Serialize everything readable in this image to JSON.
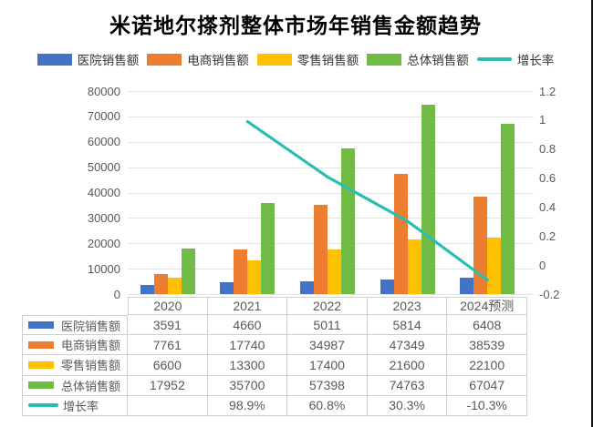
{
  "chart_data": {
    "type": "bar",
    "title": "米诺地尔搽剂整体市场年销售金额趋势",
    "categories": [
      "2020",
      "2021",
      "2022",
      "2023",
      "2024预测"
    ],
    "series": [
      {
        "key": "hospital-sales",
        "name": "医院销售额",
        "type": "bar",
        "axis": "left",
        "color": "#4472C4",
        "values": [
          3591,
          4660,
          5011,
          5814,
          6408
        ]
      },
      {
        "key": "ecommerce-sales",
        "name": "电商销售额",
        "type": "bar",
        "axis": "left",
        "color": "#ED7D31",
        "values": [
          7761,
          17740,
          34987,
          47349,
          38539
        ]
      },
      {
        "key": "retail-sales",
        "name": "零售销售额",
        "type": "bar",
        "axis": "left",
        "color": "#FFC000",
        "values": [
          6600,
          13300,
          17400,
          21600,
          22100
        ]
      },
      {
        "key": "total-sales",
        "name": "总体销售额",
        "type": "bar",
        "axis": "left",
        "color": "#71BC47",
        "values": [
          17952,
          35700,
          57398,
          74763,
          67047
        ]
      },
      {
        "key": "growth-rate",
        "name": "增长率",
        "type": "line",
        "axis": "right",
        "color": "#2CBDB2",
        "values": [
          null,
          0.989,
          0.608,
          0.303,
          -0.103
        ]
      }
    ],
    "left_axis": {
      "min": 0,
      "max": 80000,
      "tick_labels": [
        "0",
        "10000",
        "20000",
        "30000",
        "40000",
        "50000",
        "60000",
        "70000",
        "80000"
      ]
    },
    "right_axis": {
      "min": -0.2,
      "max": 1.2,
      "tick_labels": [
        "-0.2",
        "0",
        "0.2",
        "0.4",
        "0.6",
        "0.8",
        "1",
        "1.2"
      ]
    },
    "grid": true,
    "legend_position": "top"
  },
  "table": {
    "corner_label": "",
    "header": [
      "2020",
      "2021",
      "2022",
      "2023",
      "2024预测"
    ],
    "rows": [
      {
        "key": "hospital-sales",
        "label": "医院销售额",
        "swatch": "bar",
        "color": "#4472C4",
        "cells": [
          "3591",
          "4660",
          "5011",
          "5814",
          "6408"
        ]
      },
      {
        "key": "ecommerce-sales",
        "label": "电商销售额",
        "swatch": "bar",
        "color": "#ED7D31",
        "cells": [
          "7761",
          "17740",
          "34987",
          "47349",
          "38539"
        ]
      },
      {
        "key": "retail-sales",
        "label": "零售销售额",
        "swatch": "bar",
        "color": "#FFC000",
        "cells": [
          "6600",
          "13300",
          "17400",
          "21600",
          "22100"
        ]
      },
      {
        "key": "total-sales",
        "label": "总体销售额",
        "swatch": "bar",
        "color": "#71BC47",
        "cells": [
          "17952",
          "35700",
          "57398",
          "74763",
          "67047"
        ]
      },
      {
        "key": "growth-rate",
        "label": "增长率",
        "swatch": "line",
        "color": "#2CBDB2",
        "cells": [
          "",
          "98.9%",
          "60.8%",
          "30.3%",
          "-10.3%"
        ]
      }
    ]
  }
}
